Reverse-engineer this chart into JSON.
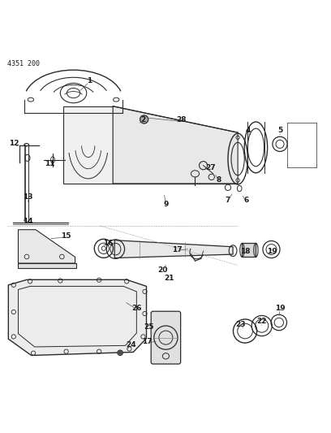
{
  "title": "4351 200",
  "bg_color": "#ffffff",
  "line_color": "#2a2a2a",
  "label_color": "#1a1a1a",
  "fig_width": 4.08,
  "fig_height": 5.33,
  "dpi": 100
}
